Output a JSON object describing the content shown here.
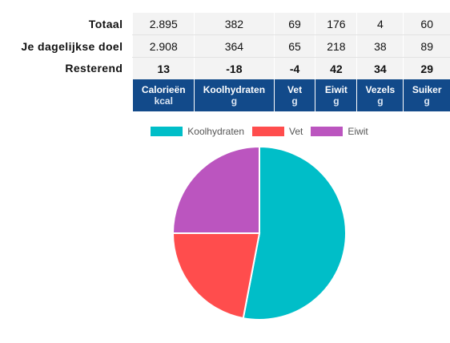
{
  "table": {
    "rows": [
      {
        "label": "Totaal",
        "values": [
          "2.895",
          "382",
          "69",
          "176",
          "4",
          "60"
        ],
        "style": [
          "plain",
          "plain",
          "plain",
          "plain",
          "plain",
          "plain"
        ]
      },
      {
        "label": "Je dagelijkse doel",
        "values": [
          "2.908",
          "364",
          "65",
          "218",
          "38",
          "89"
        ],
        "style": [
          "plain",
          "plain",
          "plain",
          "plain",
          "plain",
          "plain"
        ]
      },
      {
        "label": "Resterend",
        "values": [
          "13",
          "-18",
          "-4",
          "42",
          "34",
          "29"
        ],
        "style": [
          "pos",
          "neg",
          "neg",
          "pos",
          "pos",
          "pos"
        ]
      }
    ],
    "columns": [
      {
        "name": "Calorieën",
        "unit": "kcal"
      },
      {
        "name": "Koolhydraten",
        "unit": "g"
      },
      {
        "name": "Vet",
        "unit": "g"
      },
      {
        "name": "Eiwit",
        "unit": "g"
      },
      {
        "name": "Vezels",
        "unit": "g"
      },
      {
        "name": "Suiker",
        "unit": "g"
      }
    ]
  },
  "chart_data": {
    "type": "pie",
    "legend_position": "top",
    "series": [
      {
        "name": "Koolhydraten",
        "value": 53,
        "color": "#00bec8"
      },
      {
        "name": "Vet",
        "value": 22,
        "color": "#ff4d4d"
      },
      {
        "name": "Eiwit",
        "value": 25,
        "color": "#bb55bf"
      }
    ]
  }
}
